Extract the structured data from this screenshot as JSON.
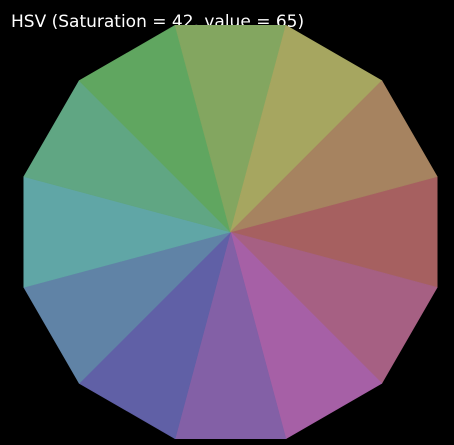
{
  "chart_data": {
    "type": "pie",
    "title": "HSV (Saturation = 42, value = 65)",
    "saturation": 42,
    "value": 65,
    "slices": [
      {
        "hue": 0,
        "color": "#a66060"
      },
      {
        "hue": 330,
        "color": "#a66083"
      },
      {
        "hue": 300,
        "color": "#a660a6"
      },
      {
        "hue": 270,
        "color": "#8360a6"
      },
      {
        "hue": 240,
        "color": "#6060a6"
      },
      {
        "hue": 210,
        "color": "#6083a6"
      },
      {
        "hue": 180,
        "color": "#60a6a6"
      },
      {
        "hue": 150,
        "color": "#60a683"
      },
      {
        "hue": 120,
        "color": "#60a660"
      },
      {
        "hue": 90,
        "color": "#83a660"
      },
      {
        "hue": 60,
        "color": "#a6a660"
      },
      {
        "hue": 30,
        "color": "#a68360"
      }
    ]
  }
}
